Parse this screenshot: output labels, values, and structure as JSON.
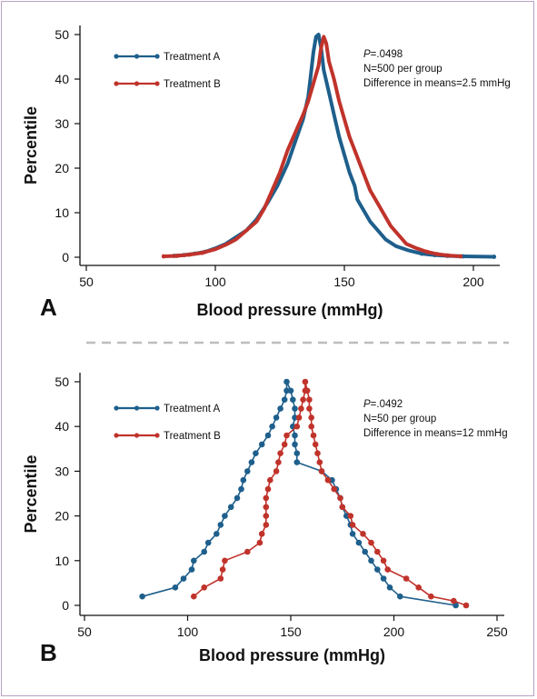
{
  "panels": [
    {
      "letter": "A",
      "annotation": {
        "p_label": "P",
        "p_value": "=.0498",
        "n": "N=500 per group",
        "diff": "Difference in means=2.5 mmHg"
      }
    },
    {
      "letter": "B",
      "annotation": {
        "p_label": "P",
        "p_value": "=.0492",
        "n": "N=50 per group",
        "diff": "Difference in means=12 mmHg"
      }
    }
  ],
  "colors": {
    "treatment_a": "#1e5f8c",
    "treatment_b": "#c0332b",
    "divider": "#bdbdbd",
    "frame": "#b7a0c4"
  },
  "chart_data": [
    {
      "type": "line",
      "title": "",
      "xlabel": "Blood pressure (mmHg)",
      "ylabel": "Percentile",
      "xlim": [
        45,
        210
      ],
      "ylim": [
        0,
        51
      ],
      "xticks": [
        "50",
        "100",
        "150",
        "200"
      ],
      "yticks": [
        "0",
        "10",
        "20",
        "30",
        "40",
        "50"
      ],
      "legend_position": "top-left",
      "series": [
        {
          "name": "Treatment A",
          "color": "#1e5f8c",
          "points": [
            [
              84,
              0.3
            ],
            [
              88,
              0.5
            ],
            [
              92,
              0.8
            ],
            [
              96,
              1.2
            ],
            [
              100,
              2
            ],
            [
              104,
              3
            ],
            [
              108,
              4.5
            ],
            [
              112,
              6
            ],
            [
              116,
              8.5
            ],
            [
              120,
              12
            ],
            [
              124,
              16
            ],
            [
              128,
              21
            ],
            [
              131,
              26
            ],
            [
              134,
              31
            ],
            [
              136,
              36
            ],
            [
              137,
              41
            ],
            [
              138,
              46
            ],
            [
              139,
              49.5
            ],
            [
              140,
              50
            ],
            [
              141,
              47
            ],
            [
              142,
              42
            ],
            [
              144,
              37
            ],
            [
              146,
              32
            ],
            [
              148,
              27
            ],
            [
              150,
              23
            ],
            [
              152,
              19
            ],
            [
              154,
              16
            ],
            [
              155,
              13
            ],
            [
              156,
              12
            ],
            [
              158,
              10
            ],
            [
              160,
              8
            ],
            [
              163,
              6
            ],
            [
              166,
              4
            ],
            [
              170,
              2.5
            ],
            [
              175,
              1.5
            ],
            [
              180,
              0.8
            ],
            [
              185,
              0.5
            ],
            [
              190,
              0.3
            ],
            [
              196,
              0.2
            ],
            [
              208,
              0.1
            ]
          ]
        },
        {
          "name": "Treatment B",
          "color": "#c0332b",
          "points": [
            [
              80,
              0.2
            ],
            [
              85,
              0.3
            ],
            [
              90,
              0.6
            ],
            [
              95,
              1
            ],
            [
              100,
              1.8
            ],
            [
              104,
              2.8
            ],
            [
              108,
              4
            ],
            [
              112,
              6
            ],
            [
              116,
              8
            ],
            [
              119,
              11
            ],
            [
              122,
              15
            ],
            [
              125,
              19
            ],
            [
              128,
              24
            ],
            [
              131,
              28
            ],
            [
              134,
              32
            ],
            [
              136,
              35
            ],
            [
              138,
              39
            ],
            [
              140,
              43
            ],
            [
              141,
              47
            ],
            [
              142,
              49.5
            ],
            [
              143,
              48
            ],
            [
              144,
              44
            ],
            [
              146,
              40
            ],
            [
              148,
              35
            ],
            [
              150,
              31
            ],
            [
              152,
              27
            ],
            [
              154,
              24
            ],
            [
              156,
              21
            ],
            [
              158,
              18
            ],
            [
              160,
              15
            ],
            [
              162,
              13
            ],
            [
              164,
              11
            ],
            [
              166,
              9
            ],
            [
              168,
              7
            ],
            [
              171,
              5
            ],
            [
              174,
              3
            ],
            [
              178,
              2
            ],
            [
              182,
              1.2
            ],
            [
              186,
              0.7
            ],
            [
              190,
              0.4
            ],
            [
              195,
              0.2
            ]
          ]
        }
      ]
    },
    {
      "type": "line",
      "title": "",
      "xlabel": "Blood pressure (mmHg)",
      "ylabel": "Percentile",
      "xlim": [
        50,
        255
      ],
      "ylim": [
        0,
        51
      ],
      "xticks": [
        "50",
        "100",
        "150",
        "200",
        "250"
      ],
      "yticks": [
        "0",
        "10",
        "20",
        "30",
        "40",
        "50"
      ],
      "legend_position": "top-left",
      "series": [
        {
          "name": "Treatment A",
          "color": "#1e5f8c",
          "points": [
            [
              78,
              2
            ],
            [
              94,
              4
            ],
            [
              98,
              6
            ],
            [
              102,
              8
            ],
            [
              103,
              10
            ],
            [
              108,
              12
            ],
            [
              110,
              14
            ],
            [
              114,
              16
            ],
            [
              116,
              18
            ],
            [
              118,
              20
            ],
            [
              121,
              22
            ],
            [
              124,
              24
            ],
            [
              126,
              26
            ],
            [
              127,
              28
            ],
            [
              129,
              30
            ],
            [
              131,
              32
            ],
            [
              133,
              34
            ],
            [
              136,
              36
            ],
            [
              139,
              38
            ],
            [
              141,
              40
            ],
            [
              143,
              42
            ],
            [
              145,
              44
            ],
            [
              147,
              46
            ],
            [
              148,
              48
            ],
            [
              148,
              50
            ],
            [
              150,
              48
            ],
            [
              151,
              46
            ],
            [
              152,
              44
            ],
            [
              152,
              42
            ],
            [
              151,
              40
            ],
            [
              152,
              38
            ],
            [
              152,
              36
            ],
            [
              153,
              34
            ],
            [
              153,
              32
            ],
            [
              165,
              30
            ],
            [
              170,
              28
            ],
            [
              172,
              26
            ],
            [
              174,
              24
            ],
            [
              175,
              22
            ],
            [
              177,
              20
            ],
            [
              179,
              18
            ],
            [
              180,
              16
            ],
            [
              183,
              14
            ],
            [
              186,
              12
            ],
            [
              189,
              10
            ],
            [
              192,
              8
            ],
            [
              195,
              6
            ],
            [
              198,
              4
            ],
            [
              203,
              2
            ],
            [
              230,
              0
            ]
          ]
        },
        {
          "name": "Treatment B",
          "color": "#c0332b",
          "points": [
            [
              103,
              2
            ],
            [
              108,
              4
            ],
            [
              116,
              6
            ],
            [
              117,
              8
            ],
            [
              118,
              10
            ],
            [
              129,
              12
            ],
            [
              135,
              14
            ],
            [
              136,
              16
            ],
            [
              138,
              18
            ],
            [
              138,
              20
            ],
            [
              138,
              22
            ],
            [
              138,
              24
            ],
            [
              139,
              26
            ],
            [
              140,
              28
            ],
            [
              143,
              30
            ],
            [
              144,
              32
            ],
            [
              145,
              34
            ],
            [
              147,
              36
            ],
            [
              148,
              38
            ],
            [
              153,
              40
            ],
            [
              154,
              42
            ],
            [
              155,
              44
            ],
            [
              156,
              46
            ],
            [
              157,
              48
            ],
            [
              157,
              50
            ],
            [
              158,
              48
            ],
            [
              159,
              46
            ],
            [
              159,
              44
            ],
            [
              160,
              42
            ],
            [
              160,
              40
            ],
            [
              161,
              38
            ],
            [
              162,
              36
            ],
            [
              163,
              34
            ],
            [
              164,
              32
            ],
            [
              165,
              30
            ],
            [
              168,
              28
            ],
            [
              171,
              26
            ],
            [
              174,
              24
            ],
            [
              175,
              22
            ],
            [
              179,
              20
            ],
            [
              180,
              18
            ],
            [
              185,
              16
            ],
            [
              189,
              14
            ],
            [
              192,
              12
            ],
            [
              195,
              10
            ],
            [
              197,
              8
            ],
            [
              206,
              6
            ],
            [
              212,
              4
            ],
            [
              218,
              2
            ],
            [
              229,
              1
            ],
            [
              235,
              0
            ]
          ]
        }
      ]
    }
  ]
}
